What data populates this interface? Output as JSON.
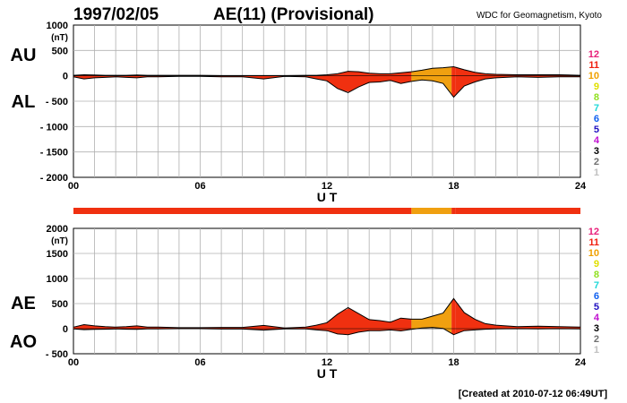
{
  "header": {
    "date": "1997/02/05",
    "title": "AE(11) (Provisional)",
    "source": "WDC for Geomagnetism, Kyoto",
    "footer": "[Created at 2010-07-12 06:49UT]"
  },
  "colors": {
    "red": "#f03010",
    "orange": "#f0a010",
    "grid": "#b0b0b0",
    "line": "#000000"
  },
  "station_legend": [
    {
      "label": "12",
      "color": "#e8207a"
    },
    {
      "label": "11",
      "color": "#f02010"
    },
    {
      "label": "10",
      "color": "#f0a000"
    },
    {
      "label": "9",
      "color": "#e0e000"
    },
    {
      "label": "8",
      "color": "#90e020"
    },
    {
      "label": "7",
      "color": "#20d8d8"
    },
    {
      "label": "6",
      "color": "#1060f0"
    },
    {
      "label": "5",
      "color": "#2010c0"
    },
    {
      "label": "4",
      "color": "#c010d0"
    },
    {
      "label": "3",
      "color": "#000000"
    },
    {
      "label": "2",
      "color": "#707070"
    },
    {
      "label": "1",
      "color": "#c0c0c0"
    }
  ],
  "chart_data": [
    {
      "type": "area",
      "panel": "AU/AL",
      "labels": {
        "upper": "AU",
        "lower": "AL"
      },
      "unit_label": "(nT)",
      "xlabel": "U T",
      "xlim": [
        0,
        24
      ],
      "xticks": [
        0,
        6,
        12,
        18,
        24
      ],
      "xtick_labels": [
        "00",
        "06",
        "12",
        "18",
        "24"
      ],
      "ylim": [
        -2000,
        1000
      ],
      "yticks": [
        1000,
        500,
        0,
        -500,
        -1000,
        -1500,
        -2000
      ],
      "ytick_labels": [
        "1000",
        "500",
        "0",
        "- 500",
        "- 1000",
        "- 1500",
        "- 2000"
      ],
      "grid": true,
      "colored_by_station_count": [
        {
          "from": 0,
          "to": 16.0,
          "stations": "11"
        },
        {
          "from": 16.0,
          "to": 17.9,
          "stations": "10"
        },
        {
          "from": 17.9,
          "to": 18.1,
          "stations": "11"
        },
        {
          "from": 18.1,
          "to": 24,
          "stations": "11"
        }
      ],
      "series": [
        {
          "name": "AU",
          "x": [
            0,
            0.5,
            1,
            1.5,
            2,
            2.5,
            3,
            3.5,
            4,
            5,
            6,
            7,
            8,
            9,
            10,
            11,
            11.5,
            12,
            12.5,
            13,
            13.5,
            14,
            14.5,
            15,
            15.5,
            16,
            16.5,
            17,
            17.5,
            18,
            18.5,
            19,
            19.5,
            20,
            21,
            22,
            23,
            24
          ],
          "y": [
            10,
            20,
            15,
            10,
            10,
            10,
            15,
            10,
            10,
            10,
            10,
            5,
            5,
            5,
            5,
            10,
            10,
            20,
            40,
            90,
            80,
            50,
            40,
            40,
            60,
            80,
            110,
            150,
            160,
            180,
            120,
            70,
            40,
            30,
            20,
            20,
            20,
            10
          ]
        },
        {
          "name": "AL",
          "x": [
            0,
            0.5,
            1,
            1.5,
            2,
            2.5,
            3,
            3.5,
            4,
            5,
            6,
            7,
            8,
            9,
            10,
            11,
            11.5,
            12,
            12.5,
            13,
            13.5,
            14,
            14.5,
            15,
            15.5,
            16,
            16.5,
            17,
            17.5,
            18,
            18.5,
            19,
            19.5,
            20,
            21,
            22,
            23,
            24
          ],
          "y": [
            -20,
            -60,
            -40,
            -30,
            -20,
            -30,
            -40,
            -20,
            -20,
            -10,
            -10,
            -20,
            -20,
            -60,
            -10,
            -20,
            -60,
            -100,
            -250,
            -330,
            -220,
            -130,
            -120,
            -90,
            -150,
            -110,
            -80,
            -100,
            -150,
            -420,
            -200,
            -120,
            -60,
            -40,
            -20,
            -30,
            -20,
            -20
          ]
        }
      ]
    },
    {
      "type": "area",
      "panel": "AE/AO",
      "labels": {
        "upper": "AE",
        "lower": "AO"
      },
      "unit_label": "(nT)",
      "xlabel": "U T",
      "xlim": [
        0,
        24
      ],
      "xticks": [
        0,
        6,
        12,
        18,
        24
      ],
      "xtick_labels": [
        "00",
        "06",
        "12",
        "18",
        "24"
      ],
      "ylim": [
        -500,
        2000
      ],
      "yticks": [
        2000,
        1500,
        1000,
        500,
        0,
        -500
      ],
      "ytick_labels": [
        "2000",
        "1500",
        "1000",
        "500",
        "0",
        "- 500"
      ],
      "grid": true,
      "series": [
        {
          "name": "AE",
          "x": [
            0,
            0.5,
            1,
            1.5,
            2,
            2.5,
            3,
            3.5,
            4,
            5,
            6,
            7,
            8,
            9,
            10,
            11,
            11.5,
            12,
            12.5,
            13,
            13.5,
            14,
            14.5,
            15,
            15.5,
            16,
            16.5,
            17,
            17.5,
            18,
            18.5,
            19,
            19.5,
            20,
            21,
            22,
            23,
            24
          ],
          "y": [
            30,
            80,
            55,
            40,
            30,
            40,
            55,
            30,
            30,
            20,
            20,
            25,
            25,
            65,
            15,
            30,
            70,
            120,
            290,
            420,
            300,
            180,
            160,
            130,
            210,
            190,
            190,
            250,
            310,
            600,
            320,
            190,
            100,
            70,
            40,
            50,
            40,
            30
          ]
        },
        {
          "name": "AO",
          "x": [
            0,
            0.5,
            1,
            1.5,
            2,
            2.5,
            3,
            3.5,
            4,
            5,
            6,
            7,
            8,
            9,
            10,
            11,
            11.5,
            12,
            12.5,
            13,
            13.5,
            14,
            14.5,
            15,
            15.5,
            16,
            16.5,
            17,
            17.5,
            18,
            18.5,
            19,
            19.5,
            20,
            21,
            22,
            23,
            24
          ],
          "y": [
            -5,
            -20,
            -12,
            -10,
            -5,
            -10,
            -12,
            -5,
            -5,
            0,
            0,
            -8,
            -8,
            -28,
            -3,
            -5,
            -25,
            -40,
            -105,
            -120,
            -70,
            -40,
            -40,
            -25,
            -45,
            -15,
            15,
            25,
            5,
            -120,
            -40,
            -25,
            -10,
            -5,
            0,
            -5,
            0,
            -5
          ]
        }
      ]
    }
  ]
}
